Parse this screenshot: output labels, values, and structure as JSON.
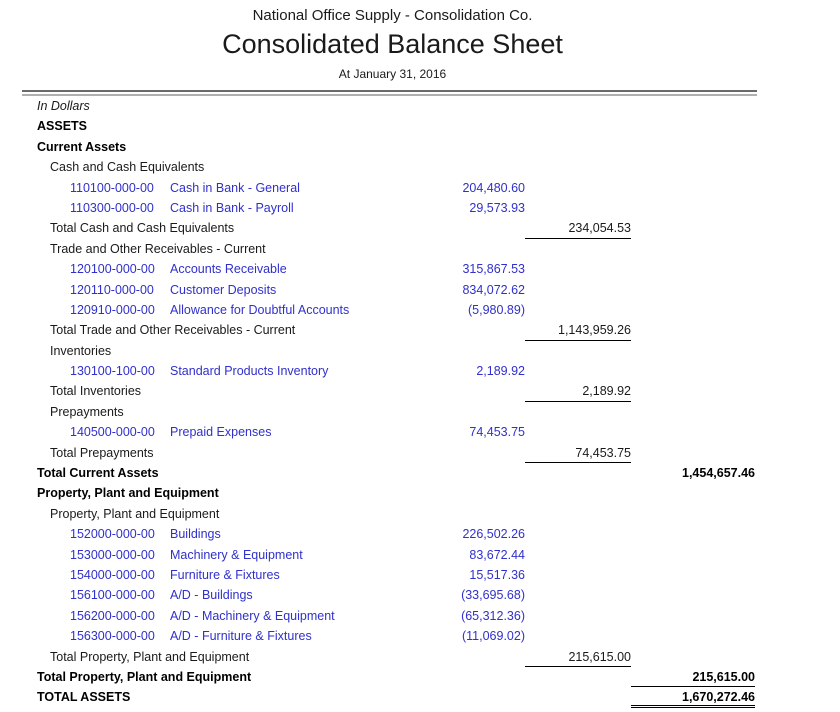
{
  "colors": {
    "link_blue": "#3030CC",
    "text": "#1a1a1a",
    "bold_text": "#000000",
    "rule_dark": "#6a6a6a",
    "rule_light": "#b0b0b0"
  },
  "header": {
    "company": "National Office Supply - Consolidation Co.",
    "title": "Consolidated Balance Sheet",
    "date_line": "At January 31, 2016"
  },
  "report": {
    "rows": [
      {
        "type": "note",
        "style": "italic",
        "indent": 0,
        "label": "In Dollars"
      },
      {
        "type": "section",
        "style": "bold",
        "indent": 0,
        "label": "ASSETS"
      },
      {
        "type": "section",
        "style": "bold",
        "indent": 0,
        "label": "Current Assets"
      },
      {
        "type": "group",
        "indent": 1,
        "label": "Cash and Cash Equivalents"
      },
      {
        "type": "account",
        "code": "110100-000-00",
        "name": "Cash in Bank - General",
        "c1": "204,480.60"
      },
      {
        "type": "account",
        "code": "110300-000-00",
        "name": "Cash in Bank - Payroll",
        "c1": "29,573.93"
      },
      {
        "type": "total",
        "indent": 1,
        "label": "Total Cash and Cash Equivalents",
        "c2": "234,054.53",
        "underline": "c2"
      },
      {
        "type": "group",
        "indent": 1,
        "label": "Trade and Other Receivables - Current"
      },
      {
        "type": "account",
        "code": "120100-000-00",
        "name": "Accounts Receivable",
        "c1": "315,867.53"
      },
      {
        "type": "account",
        "code": "120110-000-00",
        "name": "Customer Deposits",
        "c1": "834,072.62"
      },
      {
        "type": "account",
        "code": "120910-000-00",
        "name": "Allowance for Doubtful Accounts",
        "c1": "(5,980.89)"
      },
      {
        "type": "total",
        "indent": 1,
        "label": "Total Trade and Other Receivables - Current",
        "c2": "1,143,959.26",
        "underline": "c2"
      },
      {
        "type": "group",
        "indent": 1,
        "label": "Inventories"
      },
      {
        "type": "account",
        "code": "130100-100-00",
        "name": "Standard Products Inventory",
        "c1": "2,189.92"
      },
      {
        "type": "total",
        "indent": 1,
        "label": "Total Inventories",
        "c2": "2,189.92",
        "underline": "c2"
      },
      {
        "type": "group",
        "indent": 1,
        "label": "Prepayments"
      },
      {
        "type": "account",
        "code": "140500-000-00",
        "name": "Prepaid Expenses",
        "c1": "74,453.75"
      },
      {
        "type": "total",
        "indent": 1,
        "label": "Total Prepayments",
        "c2": "74,453.75",
        "underline": "c2"
      },
      {
        "type": "grand_total",
        "style": "bold",
        "indent": 0,
        "label": "Total Current Assets",
        "c3": "1,454,657.46"
      },
      {
        "type": "section",
        "style": "bold",
        "indent": 0,
        "label": "Property, Plant and Equipment"
      },
      {
        "type": "group",
        "indent": 1,
        "label": "Property, Plant and Equipment"
      },
      {
        "type": "account",
        "code": "152000-000-00",
        "name": "Buildings",
        "c1": "226,502.26"
      },
      {
        "type": "account",
        "code": "153000-000-00",
        "name": "Machinery & Equipment",
        "c1": "83,672.44"
      },
      {
        "type": "account",
        "code": "154000-000-00",
        "name": "Furniture & Fixtures",
        "c1": "15,517.36"
      },
      {
        "type": "account",
        "code": "156100-000-00",
        "name": "A/D - Buildings",
        "c1": "(33,695.68)"
      },
      {
        "type": "account",
        "code": "156200-000-00",
        "name": "A/D - Machinery & Equipment",
        "c1": "(65,312.36)"
      },
      {
        "type": "account",
        "code": "156300-000-00",
        "name": "A/D - Furniture & Fixtures",
        "c1": "(11,069.02)"
      },
      {
        "type": "total",
        "indent": 1,
        "label": "Total Property, Plant and Equipment",
        "c2": "215,615.00",
        "underline": "c2"
      },
      {
        "type": "grand_total",
        "style": "bold",
        "indent": 0,
        "label": "Total Property, Plant and Equipment",
        "c3": "215,615.00",
        "underline": "c3"
      },
      {
        "type": "grand_total",
        "style": "bold",
        "indent": 0,
        "label": "TOTAL ASSETS",
        "c3": "1,670,272.46",
        "underline": "c3-double"
      }
    ]
  }
}
